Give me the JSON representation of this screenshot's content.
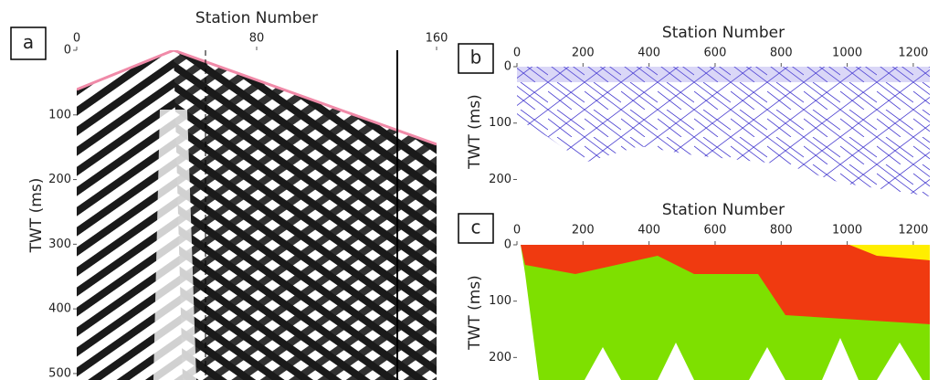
{
  "chart_data": [
    {
      "type": "image",
      "label": "a",
      "title": "Station Number",
      "y_label": "TWT (ms)",
      "xlim": [
        0,
        160
      ],
      "xticks": [
        0,
        80,
        160
      ],
      "ylim": [
        0,
        510
      ],
      "yticks": [
        0,
        100,
        200,
        300,
        400,
        500
      ]
    },
    {
      "type": "image",
      "label": "b",
      "title": "Station Number",
      "y_label": "TWT (ms)",
      "xlim": [
        0,
        1250
      ],
      "xticks": [
        0,
        200,
        400,
        600,
        800,
        1000,
        1200
      ],
      "ylim": [
        0,
        230
      ],
      "yticks": [
        0,
        100,
        200
      ]
    },
    {
      "type": "image",
      "label": "c",
      "title": "Station Number",
      "y_label": "TWT (ms)",
      "xlim": [
        0,
        1250
      ],
      "xticks": [
        0,
        200,
        400,
        600,
        800,
        1000,
        1200
      ],
      "ylim": [
        0,
        240
      ],
      "yticks": [
        0,
        100,
        200
      ]
    }
  ]
}
